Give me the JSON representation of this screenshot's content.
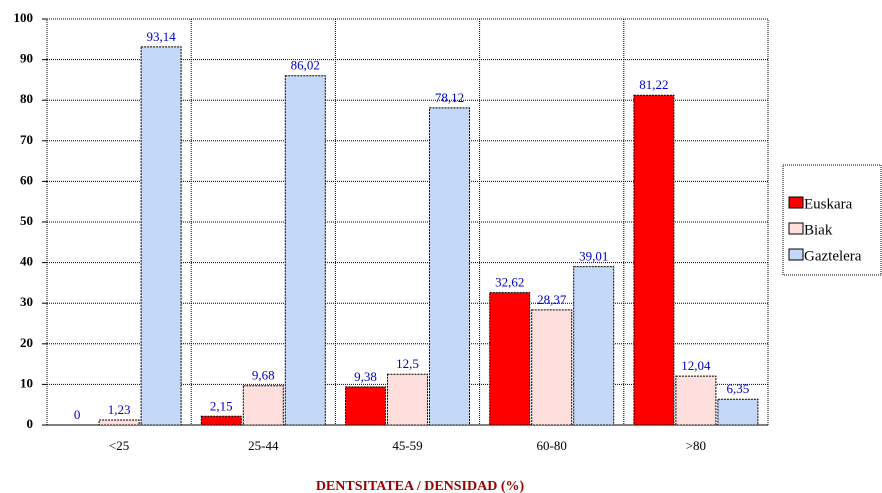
{
  "chart_data": {
    "type": "bar",
    "x_label": "DENTSITATEA / DENSIDAD (%)",
    "categories": [
      "<25",
      "25-44",
      "45-59",
      "60-80",
      ">80"
    ],
    "series": [
      {
        "name": "Euskara",
        "color": "#ff0000",
        "values": [
          0,
          2.15,
          9.38,
          32.62,
          81.22
        ],
        "value_labels": [
          "0",
          "2,15",
          "9,38",
          "32,62",
          "81,22"
        ]
      },
      {
        "name": "Biak",
        "color": "#ffdede",
        "values": [
          1.23,
          9.68,
          12.5,
          28.37,
          12.04
        ],
        "value_labels": [
          "1,23",
          "9,68",
          "12,5",
          "28,37",
          "12,04"
        ]
      },
      {
        "name": "Gaztelera",
        "color": "#c4d8f8",
        "values": [
          93.14,
          86.02,
          78.12,
          39.01,
          6.35
        ],
        "value_labels": [
          "93,14",
          "86,02",
          "78,12",
          "39,01",
          "6,35"
        ]
      }
    ],
    "ylim": [
      0,
      100
    ],
    "yticks": [
      0,
      10,
      20,
      30,
      40,
      50,
      60,
      70,
      80,
      90,
      100
    ],
    "grid": true,
    "legend": "right"
  }
}
